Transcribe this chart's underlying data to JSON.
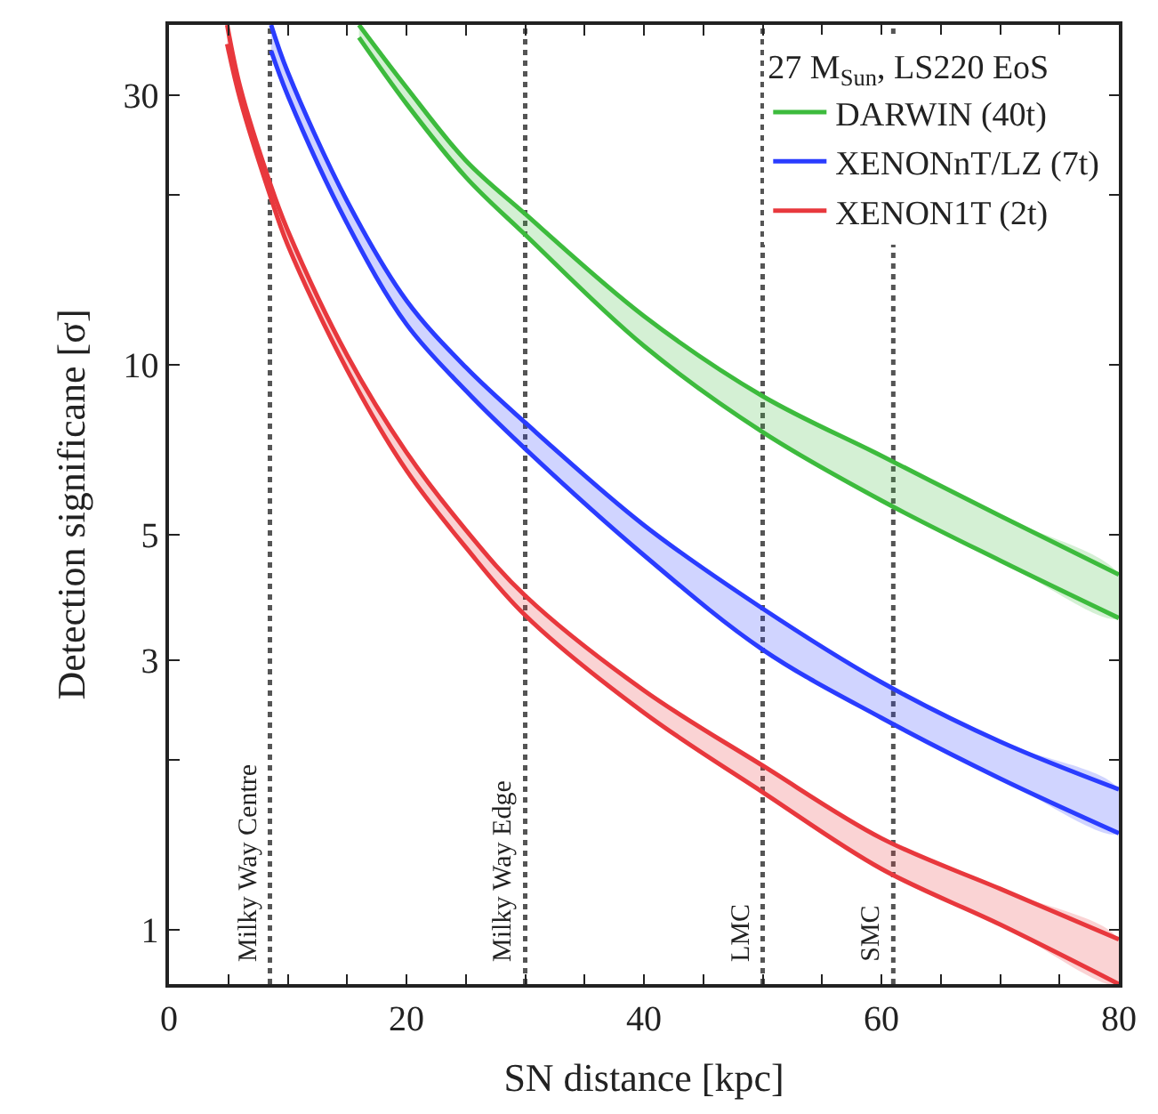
{
  "chart_data": {
    "type": "line",
    "xlabel": "SN distance [kpc]",
    "ylabel": "Detection significane [σ]",
    "legend_title": "27 M$_{Sun}$, LS220 EoS",
    "xlim": [
      0,
      80
    ],
    "ylim": [
      0.8,
      40
    ],
    "log": "y",
    "xticks": [
      0,
      {
        "value": 5,
        "label": null
      },
      {
        "value": 10,
        "label": null
      },
      {
        "value": 15,
        "label": null
      },
      20,
      {
        "value": 25,
        "label": null
      },
      {
        "value": 30,
        "label": null
      },
      {
        "value": 35,
        "label": null
      },
      40,
      {
        "value": 45,
        "label": null
      },
      {
        "value": 50,
        "label": null
      },
      {
        "value": 55,
        "label": null
      },
      60,
      {
        "value": 65,
        "label": null
      },
      {
        "value": 70,
        "label": null
      },
      {
        "value": 75,
        "label": null
      },
      80
    ],
    "yticks": [
      1,
      {
        "value": 2,
        "label": null
      },
      3,
      5,
      10,
      {
        "value": 20,
        "label": null
      },
      30
    ],
    "legend": "top right",
    "marker": "none",
    "line_style": "solid",
    "grid": false,
    "series": [
      {
        "name": "DARWIN (40t)",
        "color": "#3dbb3d",
        "x": [
          16,
          20,
          25,
          30,
          40,
          50,
          60,
          70,
          80
        ],
        "values": [
          40,
          31,
          23,
          18.5,
          12.2,
          8.8,
          6.9,
          5.4,
          4.25
        ],
        "upper": [
          40,
          31,
          23,
          18.5,
          12.2,
          8.8,
          6.9,
          5.4,
          4.25
        ],
        "lower": [
          38,
          29,
          21.5,
          17,
          10.8,
          7.6,
          5.75,
          4.5,
          3.56
        ]
      },
      {
        "name": "XENONnT/LZ (7t)",
        "color": "#2a3cff",
        "x": [
          8.6,
          10,
          15,
          20,
          25,
          30,
          40,
          50,
          60,
          70,
          80
        ],
        "values": [
          40,
          33,
          19.5,
          13,
          9.9,
          7.9,
          5.2,
          3.7,
          2.74,
          2.15,
          1.77
        ],
        "upper": [
          40,
          33,
          19.5,
          13,
          9.9,
          7.9,
          5.2,
          3.7,
          2.74,
          2.15,
          1.77
        ],
        "lower": [
          36,
          30,
          17.8,
          11.8,
          9.0,
          7.1,
          4.6,
          3.13,
          2.37,
          1.85,
          1.48
        ]
      },
      {
        "name": "XENON1T (2t)",
        "color": "#e8383d",
        "x": [
          4.9,
          6,
          8.5,
          10,
          15,
          20,
          25,
          30,
          40,
          50,
          60,
          70,
          80
        ],
        "values": [
          40,
          31,
          21,
          17.3,
          10.4,
          7.0,
          5.1,
          3.9,
          2.65,
          1.95,
          1.45,
          1.18,
          0.96
        ],
        "upper": [
          40,
          31,
          21,
          17.3,
          10.4,
          7.0,
          5.1,
          3.9,
          2.65,
          1.95,
          1.45,
          1.18,
          0.96
        ],
        "lower": [
          37,
          29.5,
          20,
          16.3,
          9.8,
          6.5,
          4.75,
          3.6,
          2.42,
          1.75,
          1.28,
          1.02,
          0.8
        ]
      },
      {
        "color": "#3dbb3d",
        "x": [
          16,
          20,
          25,
          30,
          40,
          50,
          60,
          70,
          80
        ],
        "values": [
          38,
          29,
          21.5,
          17,
          10.8,
          7.6,
          5.75,
          4.5,
          3.56
        ]
      },
      {
        "color": "#2a3cff",
        "x": [
          8.6,
          10,
          15,
          20,
          25,
          30,
          40,
          50,
          60,
          70,
          80
        ],
        "values": [
          36,
          30,
          17.8,
          11.8,
          9.0,
          7.1,
          4.6,
          3.13,
          2.37,
          1.85,
          1.48
        ]
      },
      {
        "color": "#e8383d",
        "x": [
          4.9,
          6,
          8.5,
          10,
          15,
          20,
          25,
          30,
          40,
          50,
          60,
          70,
          80
        ],
        "values": [
          37,
          29.5,
          20,
          16.3,
          9.8,
          6.5,
          4.75,
          3.6,
          2.42,
          1.75,
          1.28,
          1.02,
          0.8
        ]
      }
    ],
    "ref_lines": [
      {
        "axis": "x",
        "value": 8.5,
        "label": "Milky Way Centre",
        "color": "#555555",
        "line_style": "dotted"
      },
      {
        "axis": "x",
        "value": 30,
        "label": "Milky Way Edge",
        "color": "#555555",
        "line_style": "dotted"
      },
      {
        "axis": "x",
        "value": 50,
        "label": "LMC",
        "color": "#555555",
        "line_style": "dotted"
      },
      {
        "axis": "x",
        "value": 61,
        "label": "SMC",
        "color": "#555555",
        "line_style": "dotted"
      }
    ]
  }
}
